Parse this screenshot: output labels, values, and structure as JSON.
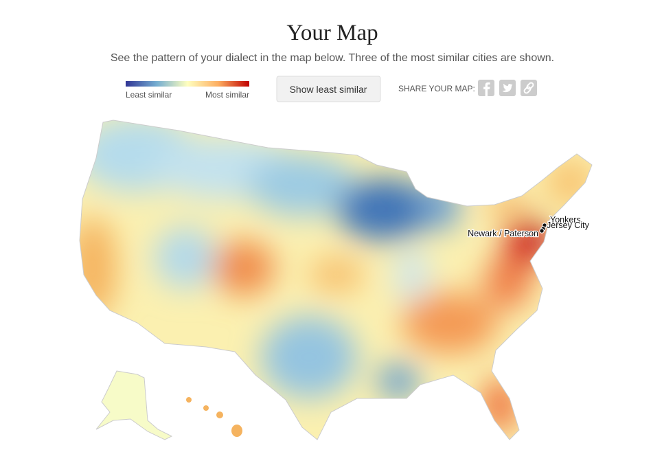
{
  "header": {
    "title": "Your Map",
    "subtitle": "See the pattern of your dialect in the map below. Three of the most similar cities are shown."
  },
  "legend": {
    "low": "Least similar",
    "high": "Most similar"
  },
  "button": "Show least similar",
  "share": {
    "label": "SHARE YOUR MAP:"
  },
  "cities": [
    {
      "label": "Yonkers"
    },
    {
      "label": "Jersey City"
    },
    {
      "label": "Newark / Paterson"
    }
  ]
}
